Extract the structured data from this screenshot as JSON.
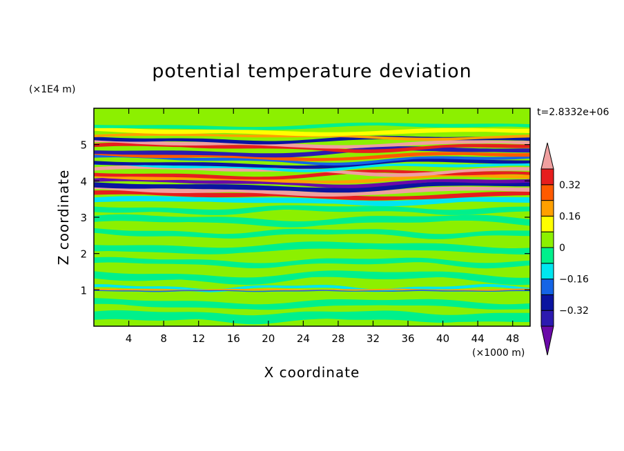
{
  "chart_data": {
    "type": "heatmap",
    "title": "potential temperature deviation",
    "xlabel": "X coordinate",
    "ylabel": "Z coordinate",
    "x_units": "(×1000 m)",
    "y_units": "(×1E4 m)",
    "time_label": "t=2.8332e+06",
    "xlim": [
      0,
      50
    ],
    "ylim": [
      0,
      6
    ],
    "x_ticks": [
      4,
      8,
      12,
      16,
      20,
      24,
      28,
      32,
      36,
      40,
      44,
      48
    ],
    "y_ticks": [
      1,
      2,
      3,
      4,
      5
    ],
    "colorbar": {
      "levels": [
        -0.48,
        -0.4,
        -0.32,
        -0.24,
        -0.16,
        -0.08,
        0,
        0.08,
        0.16,
        0.24,
        0.32,
        0.4,
        0.48
      ],
      "labels": [
        {
          "value": 0.32,
          "text": "0.32"
        },
        {
          "value": 0.16,
          "text": "0.16"
        },
        {
          "value": 0,
          "text": "0"
        },
        {
          "value": -0.16,
          "text": "−0.16"
        },
        {
          "value": -0.32,
          "text": "−0.32"
        }
      ],
      "colors": [
        "#6a0aa8",
        "#2c1ab0",
        "#0a14a0",
        "#1464e6",
        "#00e6f0",
        "#00f08c",
        "#8cf000",
        "#ffff00",
        "#ffa000",
        "#ff5a00",
        "#e61e1e",
        "#f0a0a0"
      ],
      "extend": "both"
    }
  }
}
